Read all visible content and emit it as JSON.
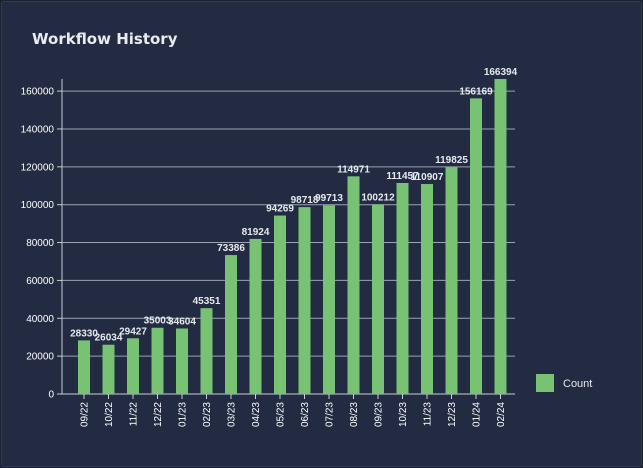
{
  "title": "Workflow History",
  "colors": {
    "bar": "#77c373",
    "grid": "#9aa3b3",
    "axis": "#c8cdd6",
    "text": "#ffffff"
  },
  "chart_data": {
    "type": "bar",
    "categories": [
      "09/22",
      "10/22",
      "11/22",
      "12/22",
      "01/23",
      "02/23",
      "03/23",
      "04/23",
      "05/23",
      "06/23",
      "07/23",
      "08/23",
      "09/23",
      "10/23",
      "11/23",
      "12/23",
      "01/24",
      "02/24"
    ],
    "series": [
      {
        "name": "Count",
        "values": [
          28330,
          26034,
          29427,
          35003,
          34604,
          45351,
          73386,
          81924,
          94269,
          98718,
          99713,
          114971,
          100212,
          111457,
          110907,
          119825,
          156169,
          166394
        ]
      }
    ],
    "ylim": [
      0,
      166394
    ],
    "yticks": [
      0,
      20000,
      40000,
      60000,
      80000,
      100000,
      120000,
      140000,
      160000
    ],
    "xlabel": "",
    "ylabel": "",
    "grid": true,
    "legend_position": "right"
  }
}
